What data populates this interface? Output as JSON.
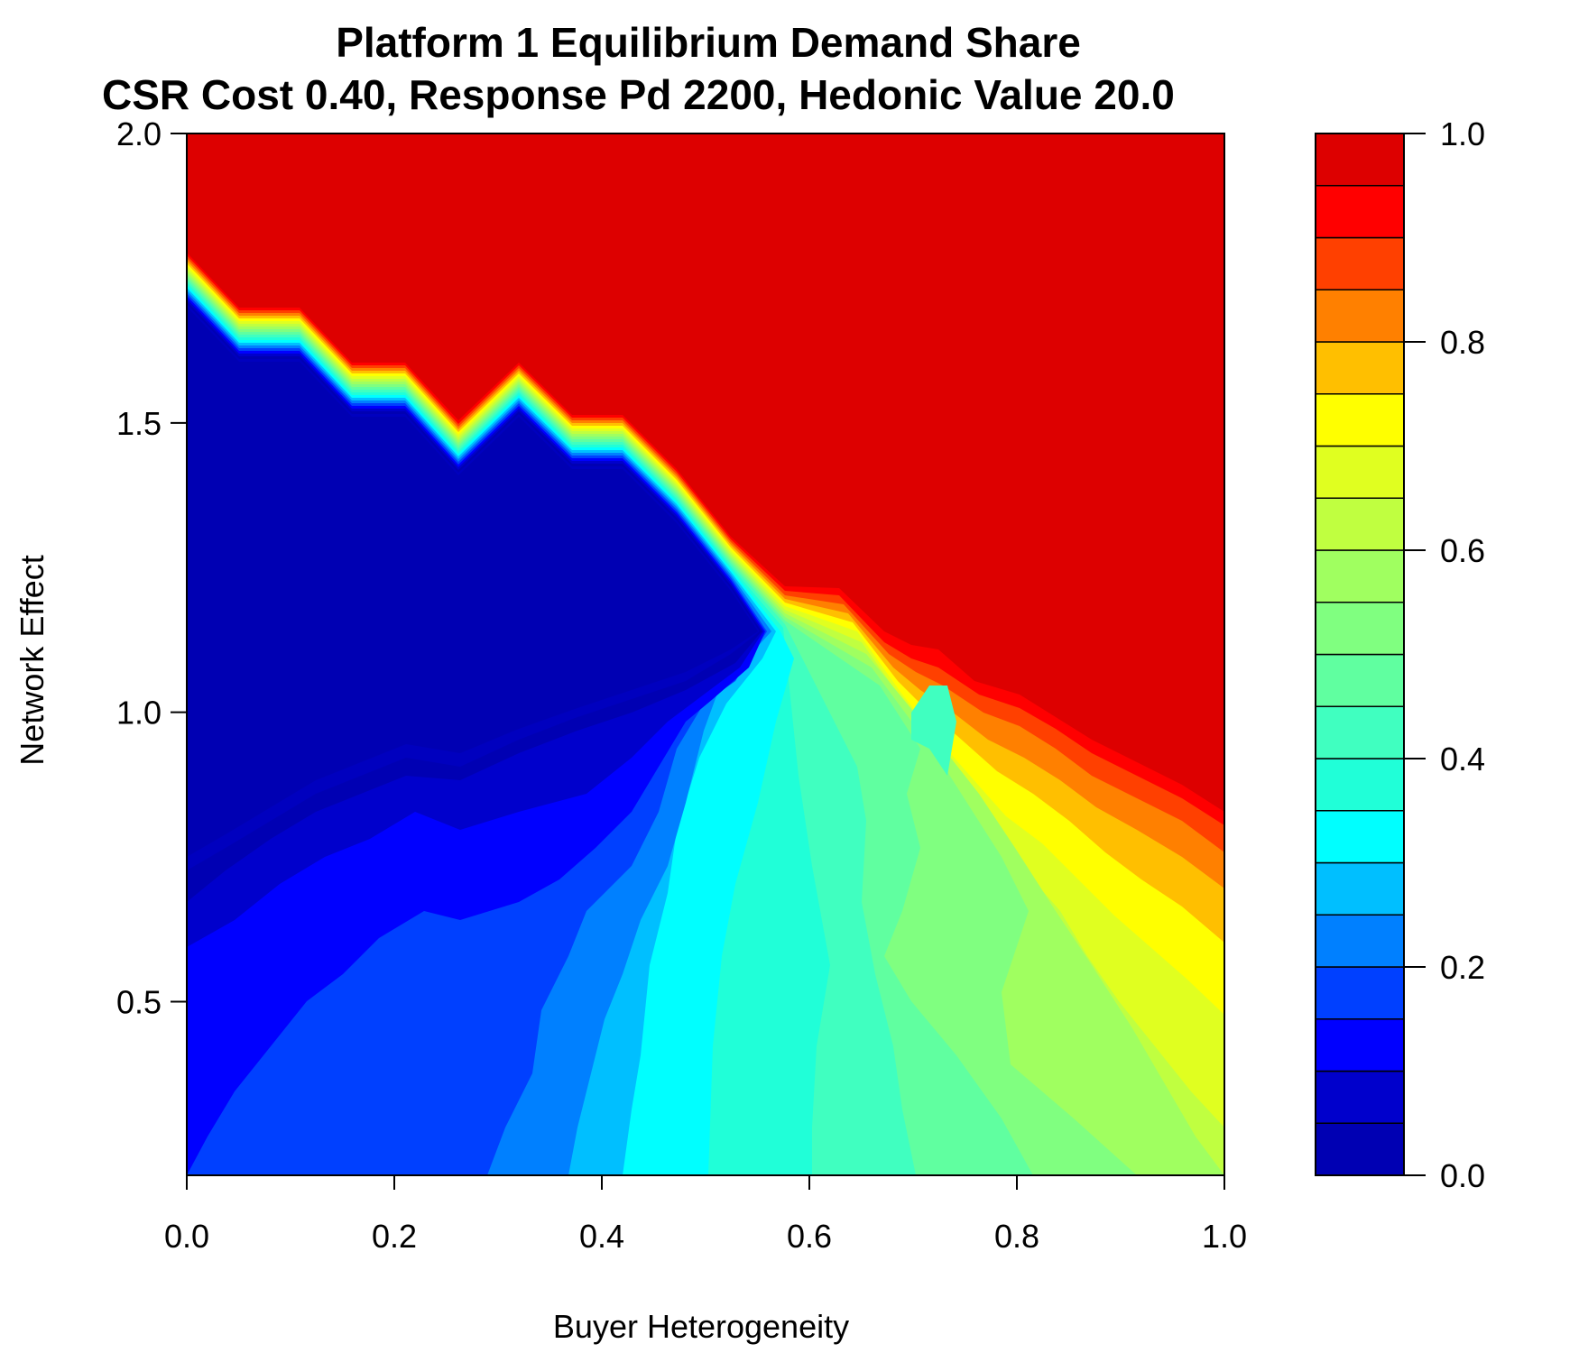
{
  "chart_data": {
    "type": "heatmap",
    "subtype": "filled-contour",
    "title": "Platform 1 Equilibrium Demand Share",
    "subtitle": "CSR Cost 0.40, Response Pd 2200, Hedonic Value 20.0",
    "xlabel": "Buyer Heterogeneity",
    "ylabel": "Network Effect",
    "xlim": [
      0.0,
      1.0
    ],
    "ylim": [
      0.2,
      2.0
    ],
    "x_ticks": [
      "0.0",
      "0.2",
      "0.4",
      "0.6",
      "0.8",
      "1.0"
    ],
    "y_ticks": [
      "0.5",
      "1.0",
      "1.5",
      "2.0"
    ],
    "colorbar": {
      "range": [
        0.0,
        1.0
      ],
      "levels": [
        0.0,
        0.05,
        0.1,
        0.15,
        0.2,
        0.25,
        0.3,
        0.35,
        0.4,
        0.45,
        0.5,
        0.55,
        0.6,
        0.65,
        0.7,
        0.75,
        0.8,
        0.85,
        0.9,
        0.95,
        1.0
      ],
      "ticks": [
        "0.0",
        "0.2",
        "0.4",
        "0.6",
        "0.8",
        "1.0"
      ],
      "colors": [
        "#0000B3",
        "#0000CC",
        "#0000FF",
        "#0040FF",
        "#0080FF",
        "#00BFFF",
        "#00FFFF",
        "#20FFD8",
        "#40FFC0",
        "#60FFA0",
        "#80FF80",
        "#A0FF60",
        "#C0FF40",
        "#E0FF20",
        "#FFFF00",
        "#FFBF00",
        "#FF8000",
        "#FF4000",
        "#FF0000",
        "#DD0000"
      ]
    },
    "grid": false,
    "legend": "right",
    "regions": [
      {
        "value": 1.0,
        "label": "upper region (red)",
        "boundary_x": [
          0.0,
          0.05,
          0.11,
          0.16,
          0.21,
          0.26,
          0.32,
          0.37,
          0.42,
          0.47,
          0.53,
          0.58,
          0.63,
          0.67,
          0.74,
          0.79,
          0.84,
          0.89,
          0.95,
          1.0
        ],
        "boundary_y": [
          1.78,
          1.69,
          1.69,
          1.59,
          1.59,
          1.5,
          1.59,
          1.5,
          1.5,
          1.4,
          1.31,
          1.21,
          1.21,
          1.12,
          1.12,
          1.1,
          1.02,
          1.0,
          0.93,
          0.86
        ]
      },
      {
        "value": 0.0,
        "label": "upper-left region (dark blue)"
      },
      {
        "value": 0.45,
        "label": "central region (green)"
      }
    ]
  }
}
